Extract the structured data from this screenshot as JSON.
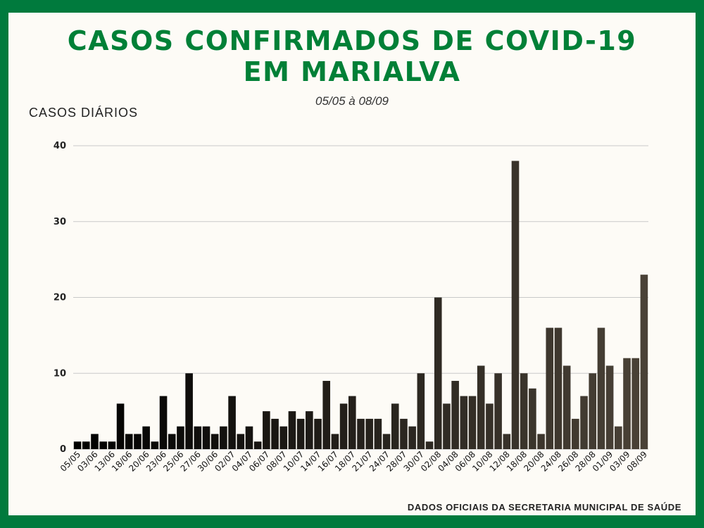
{
  "header": {
    "title_line1": "CASOS CONFIRMADOS DE COVID-19",
    "title_line2": "EM MARIALVA",
    "subtitle": "05/05 à 08/09"
  },
  "footer": "DADOS OFICIAIS DA SECRETARIA MUNICIPAL DE SAÚDE",
  "colors": {
    "frame": "#007a3d",
    "title": "#008037",
    "bar_start": "#000000",
    "bar_end": "#4a4237"
  },
  "chart_data": {
    "type": "bar",
    "title": "CASOS CONFIRMADOS DE COVID-19 EM MARIALVA",
    "subtitle": "05/05 à 08/09",
    "ylabel": "CASOS DIÁRIOS",
    "xlabel": "",
    "ylim": [
      0,
      40
    ],
    "yticks": [
      0,
      10,
      20,
      30,
      40
    ],
    "grid": true,
    "values": [
      1,
      1,
      2,
      1,
      1,
      6,
      2,
      2,
      3,
      1,
      7,
      2,
      3,
      10,
      3,
      3,
      2,
      3,
      7,
      2,
      3,
      1,
      5,
      4,
      3,
      5,
      4,
      5,
      4,
      9,
      2,
      6,
      7,
      4,
      4,
      4,
      2,
      6,
      4,
      3,
      10,
      1,
      20,
      6,
      9,
      7,
      7,
      11,
      6,
      10,
      2,
      38,
      10,
      8,
      2,
      16,
      16,
      11,
      4,
      7,
      10,
      16,
      11,
      3,
      12,
      12,
      23
    ],
    "x_tick_labels": [
      "05/05",
      "03/06",
      "13/06",
      "18/06",
      "20/06",
      "23/06",
      "25/06",
      "27/06",
      "30/06",
      "02/07",
      "04/07",
      "06/07",
      "08/07",
      "10/07",
      "14/07",
      "16/07",
      "18/07",
      "21/07",
      "24/07",
      "28/07",
      "30/07",
      "02/08",
      "04/08",
      "06/08",
      "10/08",
      "12/08",
      "18/08",
      "20/08",
      "24/08",
      "26/08",
      "28/08",
      "01/09",
      "03/09",
      "08/09"
    ]
  }
}
